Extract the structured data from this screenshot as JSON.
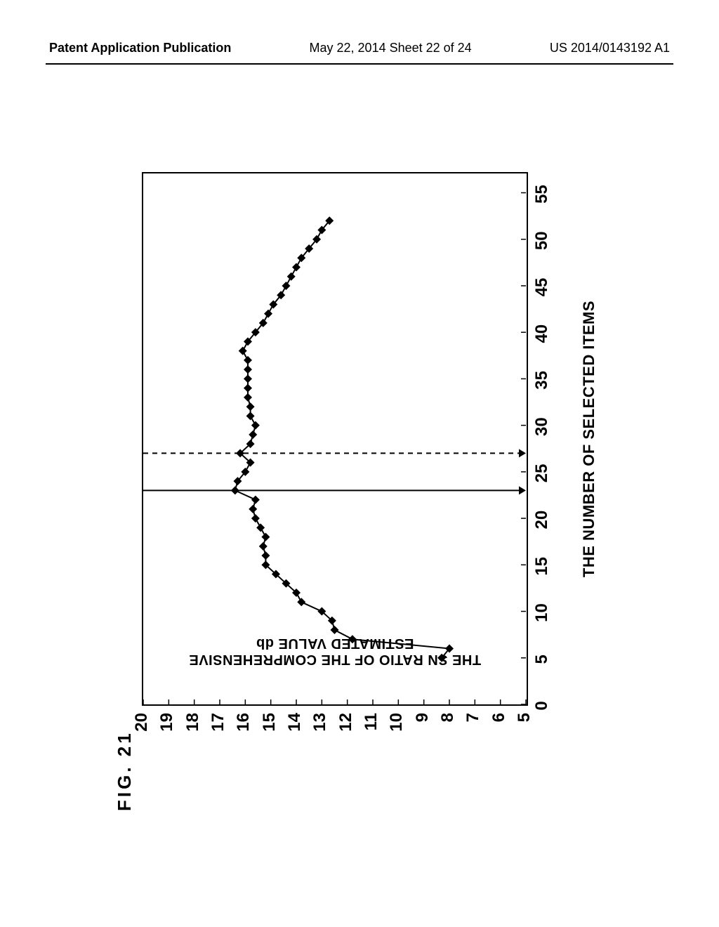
{
  "header": {
    "left": "Patent Application Publication",
    "center": "May 22, 2014  Sheet 22 of 24",
    "right": "US 2014/0143192 A1"
  },
  "figure": {
    "label": "FIG. 21",
    "xlabel": "THE NUMBER OF SELECTED ITEMS",
    "ylabel_line1": "THE SN RATIO OF THE COMPREHENSIVE",
    "ylabel_line2": "ESTIMATED VALUE db",
    "chart": {
      "type": "line-scatter",
      "xlim": [
        0,
        57
      ],
      "ylim": [
        5,
        20
      ],
      "xticks": [
        0,
        5,
        10,
        15,
        20,
        25,
        30,
        35,
        40,
        45,
        50,
        55
      ],
      "yticks": [
        5,
        6,
        7,
        8,
        9,
        10,
        11,
        12,
        13,
        14,
        15,
        16,
        17,
        18,
        19,
        20
      ],
      "tick_font_size": 24,
      "tick_font_weight": 900,
      "label_font_size": 22,
      "border_color": "#000000",
      "border_width": 2.5,
      "line_color": "#000000",
      "line_width": 2,
      "marker_shape": "diamond",
      "marker_size": 12,
      "marker_color": "#000000",
      "background_color": "#ffffff",
      "vline_solid_x": 23,
      "vline_dashed_x": 27,
      "vline_color": "#000000",
      "vline_width": 2,
      "dash_pattern": "7,6",
      "arrow_size": 10,
      "data": [
        {
          "x": 5,
          "y": 8.3
        },
        {
          "x": 6,
          "y": 8.0
        },
        {
          "x": 7,
          "y": 11.8
        },
        {
          "x": 8,
          "y": 12.5
        },
        {
          "x": 9,
          "y": 12.6
        },
        {
          "x": 10,
          "y": 13.0
        },
        {
          "x": 11,
          "y": 13.8
        },
        {
          "x": 12,
          "y": 14.0
        },
        {
          "x": 13,
          "y": 14.4
        },
        {
          "x": 14,
          "y": 14.8
        },
        {
          "x": 15,
          "y": 15.2
        },
        {
          "x": 16,
          "y": 15.2
        },
        {
          "x": 17,
          "y": 15.3
        },
        {
          "x": 18,
          "y": 15.2
        },
        {
          "x": 19,
          "y": 15.4
        },
        {
          "x": 20,
          "y": 15.6
        },
        {
          "x": 21,
          "y": 15.7
        },
        {
          "x": 22,
          "y": 15.6
        },
        {
          "x": 23,
          "y": 16.4
        },
        {
          "x": 24,
          "y": 16.3
        },
        {
          "x": 25,
          "y": 16.0
        },
        {
          "x": 26,
          "y": 15.8
        },
        {
          "x": 27,
          "y": 16.2
        },
        {
          "x": 28,
          "y": 15.8
        },
        {
          "x": 29,
          "y": 15.7
        },
        {
          "x": 30,
          "y": 15.6
        },
        {
          "x": 31,
          "y": 15.8
        },
        {
          "x": 32,
          "y": 15.8
        },
        {
          "x": 33,
          "y": 15.9
        },
        {
          "x": 34,
          "y": 15.9
        },
        {
          "x": 35,
          "y": 15.9
        },
        {
          "x": 36,
          "y": 15.9
        },
        {
          "x": 37,
          "y": 15.9
        },
        {
          "x": 38,
          "y": 16.1
        },
        {
          "x": 39,
          "y": 15.9
        },
        {
          "x": 40,
          "y": 15.6
        },
        {
          "x": 41,
          "y": 15.3
        },
        {
          "x": 42,
          "y": 15.1
        },
        {
          "x": 43,
          "y": 14.9
        },
        {
          "x": 44,
          "y": 14.6
        },
        {
          "x": 45,
          "y": 14.4
        },
        {
          "x": 46,
          "y": 14.2
        },
        {
          "x": 47,
          "y": 14.0
        },
        {
          "x": 48,
          "y": 13.8
        },
        {
          "x": 49,
          "y": 13.5
        },
        {
          "x": 50,
          "y": 13.2
        },
        {
          "x": 51,
          "y": 13.0
        },
        {
          "x": 52,
          "y": 12.7
        }
      ]
    }
  }
}
